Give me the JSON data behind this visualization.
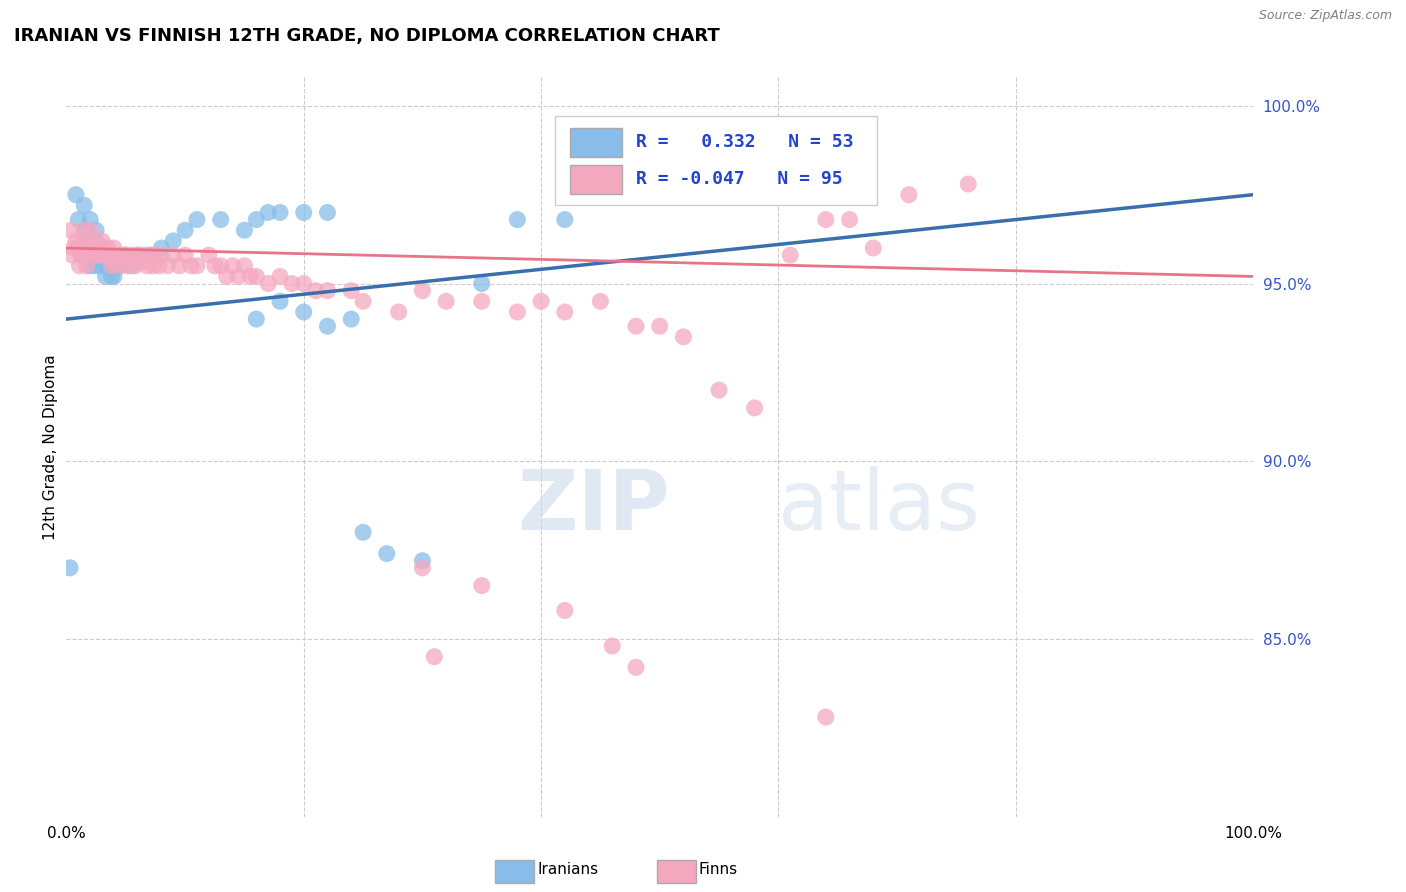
{
  "title": "IRANIAN VS FINNISH 12TH GRADE, NO DIPLOMA CORRELATION CHART",
  "source": "Source: ZipAtlas.com",
  "ylabel": "12th Grade, No Diploma",
  "legend_r_iranian": "0.332",
  "legend_n_iranian": "53",
  "legend_r_finnish": "-0.047",
  "legend_n_finnish": "95",
  "iranian_color": "#87bde8",
  "finnish_color": "#f4a8bf",
  "iranian_line_color": "#3a6fad",
  "finnish_line_color": "#e8748a",
  "background_color": "#ffffff",
  "grid_color": "#cccccc",
  "right_label_color": "#3355cc",
  "y_min": 0.8,
  "y_max": 1.008,
  "iranians_x": [
    0.003,
    0.008,
    0.01,
    0.012,
    0.013,
    0.015,
    0.016,
    0.017,
    0.018,
    0.019,
    0.02,
    0.021,
    0.021,
    0.022,
    0.023,
    0.024,
    0.025,
    0.026,
    0.027,
    0.028,
    0.03,
    0.031,
    0.033,
    0.035,
    0.038,
    0.04,
    0.045,
    0.05,
    0.055,
    0.06,
    0.07,
    0.08,
    0.09,
    0.1,
    0.11,
    0.13,
    0.15,
    0.16,
    0.17,
    0.18,
    0.2,
    0.22,
    0.16,
    0.18,
    0.2,
    0.22,
    0.24,
    0.25,
    0.27,
    0.3,
    0.35,
    0.38,
    0.42
  ],
  "iranians_y": [
    0.87,
    0.975,
    0.968,
    0.96,
    0.958,
    0.972,
    0.965,
    0.96,
    0.962,
    0.955,
    0.968,
    0.962,
    0.958,
    0.96,
    0.955,
    0.958,
    0.965,
    0.96,
    0.955,
    0.958,
    0.958,
    0.955,
    0.952,
    0.955,
    0.952,
    0.952,
    0.955,
    0.958,
    0.955,
    0.958,
    0.958,
    0.96,
    0.962,
    0.965,
    0.968,
    0.968,
    0.965,
    0.968,
    0.97,
    0.97,
    0.97,
    0.97,
    0.94,
    0.945,
    0.942,
    0.938,
    0.94,
    0.88,
    0.874,
    0.872,
    0.95,
    0.968,
    0.968
  ],
  "finns_x": [
    0.004,
    0.005,
    0.006,
    0.008,
    0.01,
    0.011,
    0.012,
    0.014,
    0.015,
    0.016,
    0.017,
    0.018,
    0.02,
    0.021,
    0.022,
    0.024,
    0.025,
    0.026,
    0.028,
    0.03,
    0.03,
    0.032,
    0.033,
    0.035,
    0.036,
    0.038,
    0.04,
    0.04,
    0.042,
    0.043,
    0.045,
    0.046,
    0.048,
    0.05,
    0.052,
    0.055,
    0.058,
    0.06,
    0.063,
    0.065,
    0.068,
    0.07,
    0.073,
    0.075,
    0.078,
    0.08,
    0.085,
    0.09,
    0.095,
    0.1,
    0.105,
    0.11,
    0.12,
    0.125,
    0.13,
    0.135,
    0.14,
    0.145,
    0.15,
    0.155,
    0.16,
    0.17,
    0.18,
    0.19,
    0.2,
    0.21,
    0.22,
    0.24,
    0.25,
    0.28,
    0.3,
    0.32,
    0.35,
    0.38,
    0.4,
    0.42,
    0.45,
    0.48,
    0.5,
    0.52,
    0.55,
    0.58,
    0.61,
    0.64,
    0.66,
    0.68,
    0.71,
    0.76,
    0.3,
    0.35,
    0.42,
    0.46,
    0.31,
    0.48,
    0.64
  ],
  "finns_y": [
    0.965,
    0.958,
    0.96,
    0.962,
    0.96,
    0.955,
    0.958,
    0.962,
    0.965,
    0.958,
    0.955,
    0.96,
    0.965,
    0.96,
    0.958,
    0.96,
    0.962,
    0.958,
    0.96,
    0.962,
    0.958,
    0.96,
    0.958,
    0.96,
    0.958,
    0.955,
    0.96,
    0.956,
    0.958,
    0.956,
    0.958,
    0.955,
    0.958,
    0.958,
    0.955,
    0.958,
    0.955,
    0.958,
    0.956,
    0.958,
    0.955,
    0.958,
    0.955,
    0.958,
    0.955,
    0.958,
    0.955,
    0.958,
    0.955,
    0.958,
    0.955,
    0.955,
    0.958,
    0.955,
    0.955,
    0.952,
    0.955,
    0.952,
    0.955,
    0.952,
    0.952,
    0.95,
    0.952,
    0.95,
    0.95,
    0.948,
    0.948,
    0.948,
    0.945,
    0.942,
    0.948,
    0.945,
    0.945,
    0.942,
    0.945,
    0.942,
    0.945,
    0.938,
    0.938,
    0.935,
    0.92,
    0.915,
    0.958,
    0.968,
    0.968,
    0.96,
    0.975,
    0.978,
    0.87,
    0.865,
    0.858,
    0.848,
    0.845,
    0.842,
    0.828
  ]
}
